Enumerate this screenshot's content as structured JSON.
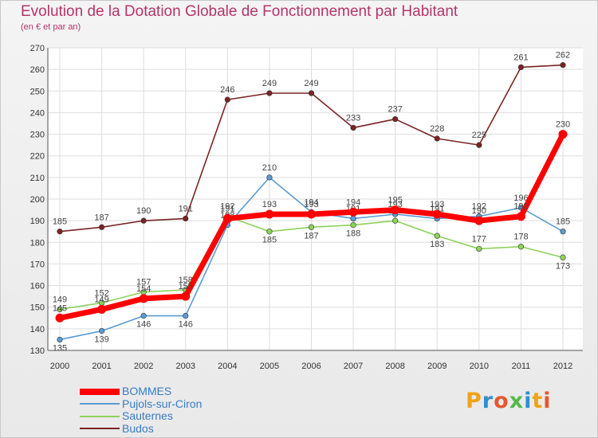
{
  "header": {
    "title": "Evolution de la Dotation Globale de Fonctionnement par Habitant",
    "subtitle": "(en € et par an)"
  },
  "logo": {
    "text": "Proxiti",
    "letters": [
      "P",
      "r",
      "o",
      "x",
      "i",
      "t",
      "i"
    ]
  },
  "chart_data": {
    "type": "line",
    "title": "Evolution de la Dotation Globale de Fonctionnement par Habitant",
    "subtitle": "(en € et par an)",
    "xlabel": "",
    "ylabel": "",
    "x": [
      "2000",
      "2001",
      "2002",
      "2003",
      "2004",
      "2005",
      "2006",
      "2007",
      "2008",
      "2009",
      "2010",
      "2011",
      "2012"
    ],
    "ylim": [
      130,
      270
    ],
    "yticks": [
      130,
      140,
      150,
      160,
      170,
      180,
      190,
      200,
      210,
      220,
      230,
      240,
      250,
      260,
      270
    ],
    "grid": true,
    "legend_position": "bottom-left",
    "series": [
      {
        "name": "Budos",
        "color": "#7a2424",
        "values": [
          185,
          187,
          190,
          191,
          246,
          249,
          249,
          233,
          237,
          228,
          225,
          261,
          262
        ]
      },
      {
        "name": "Sauternes",
        "color": "#8ed25a",
        "values": [
          149,
          152,
          157,
          158,
          192,
          185,
          187,
          188,
          190,
          183,
          177,
          178,
          173
        ]
      },
      {
        "name": "Pujols-sur-Ciron",
        "color": "#5b9bd5",
        "values": [
          135,
          139,
          146,
          146,
          188,
          210,
          194,
          191,
          193,
          191,
          192,
          196,
          185
        ]
      },
      {
        "name": "BOMMES",
        "color": "#ff0000",
        "values": [
          145,
          149,
          154,
          155,
          191,
          193,
          193,
          194,
          195,
          193,
          190,
          192,
          230
        ]
      }
    ],
    "legend_order": [
      "BOMMES",
      "Pujols-sur-Ciron",
      "Sauternes",
      "Budos"
    ]
  }
}
